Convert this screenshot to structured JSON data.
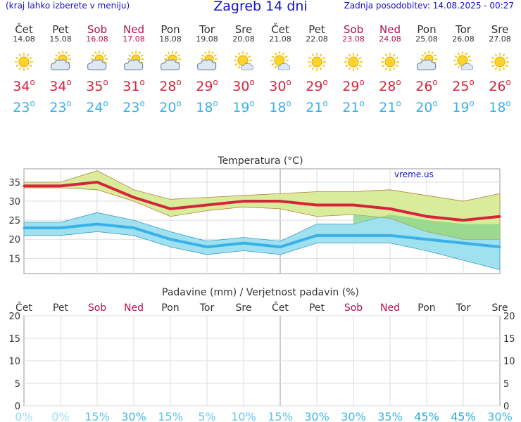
{
  "header": {
    "hint": "(kraj lahko izberete v meniju)",
    "title": "Zagreb 14 dni",
    "updated": "Zadnja posodobitev: 14.08.2025 - 00:27"
  },
  "days": [
    {
      "name": "Čet",
      "date": "14.08",
      "weekend": false,
      "icon": "sun-icon",
      "tmax": "34",
      "tmin": "23"
    },
    {
      "name": "Pet",
      "date": "15.08",
      "weekend": false,
      "icon": "sun-cloud-icon",
      "tmax": "34",
      "tmin": "23"
    },
    {
      "name": "Sob",
      "date": "16.08",
      "weekend": true,
      "icon": "sun-cloud-icon",
      "tmax": "35",
      "tmin": "24"
    },
    {
      "name": "Ned",
      "date": "17.08",
      "weekend": true,
      "icon": "sun-cloud-icon",
      "tmax": "31",
      "tmin": "23"
    },
    {
      "name": "Pon",
      "date": "18.08",
      "weekend": false,
      "icon": "sun-cloud-icon",
      "tmax": "28",
      "tmin": "20"
    },
    {
      "name": "Tor",
      "date": "19.08",
      "weekend": false,
      "icon": "sun-cloud-icon",
      "tmax": "29",
      "tmin": "18"
    },
    {
      "name": "Sre",
      "date": "20.08",
      "weekend": false,
      "icon": "sun-small-cloud-icon",
      "tmax": "30",
      "tmin": "19"
    },
    {
      "name": "Čet",
      "date": "21.08",
      "weekend": false,
      "icon": "sun-small-cloud-icon",
      "tmax": "30",
      "tmin": "18"
    },
    {
      "name": "Pet",
      "date": "22.08",
      "weekend": false,
      "icon": "sun-icon",
      "tmax": "29",
      "tmin": "21"
    },
    {
      "name": "Sob",
      "date": "23.08",
      "weekend": true,
      "icon": "sun-icon",
      "tmax": "29",
      "tmin": "21"
    },
    {
      "name": "Ned",
      "date": "24.08",
      "weekend": true,
      "icon": "sun-icon",
      "tmax": "28",
      "tmin": "21"
    },
    {
      "name": "Pon",
      "date": "25.08",
      "weekend": false,
      "icon": "sun-cloud-icon",
      "tmax": "26",
      "tmin": "20"
    },
    {
      "name": "Tor",
      "date": "26.08",
      "weekend": false,
      "icon": "sun-small-cloud-icon",
      "tmax": "25",
      "tmin": "19"
    },
    {
      "name": "Sre",
      "date": "27.08",
      "weekend": false,
      "icon": "sun-icon",
      "tmax": "26",
      "tmin": "18"
    }
  ],
  "colors": {
    "header_text": "#1111cc",
    "weekend": "#b0124f",
    "tmax": "#d6243b",
    "tmin": "#3ab0ea",
    "max_band": "#d7eb96",
    "min_band": "#9fe1ef",
    "overlap_band": "#8fd68c",
    "precip_pct": "#22aadd"
  },
  "chart_data": [
    {
      "type": "line",
      "title": "Temperatura (°C)",
      "watermark": "vreme.us",
      "categories": [
        "Čet",
        "Pet",
        "Sob",
        "Ned",
        "Pon",
        "Tor",
        "Sre",
        "Čet",
        "Pet",
        "Sob",
        "Ned",
        "Pon",
        "Tor",
        "Sre"
      ],
      "ylim": [
        11,
        38.5
      ],
      "yticks": [
        "15",
        "20",
        "25",
        "30",
        "35"
      ],
      "grid": true,
      "series": [
        {
          "name": "",
          "role": "max",
          "values": [
            34,
            34,
            35,
            31,
            28,
            29,
            30,
            30,
            29,
            29,
            28,
            26,
            25,
            26
          ]
        },
        {
          "name": "",
          "role": "min",
          "values": [
            23,
            23,
            24,
            23,
            20,
            18,
            19,
            18,
            21,
            21,
            21,
            20,
            19,
            18
          ]
        }
      ],
      "bands": [
        {
          "role": "max",
          "upper": [
            35,
            35,
            38,
            33,
            30.5,
            31,
            31.5,
            32,
            32.5,
            32.5,
            33,
            31.5,
            30,
            32
          ],
          "lower": [
            33.5,
            33.5,
            33,
            30,
            26,
            27.5,
            28.5,
            28,
            26,
            26.5,
            25.5,
            22,
            20,
            20
          ]
        },
        {
          "role": "min",
          "upper": [
            24.5,
            24.5,
            27,
            25,
            22,
            19.5,
            20.5,
            19.5,
            24,
            24,
            26.5,
            25,
            24,
            24
          ]
        }
      ]
    },
    {
      "type": "bar",
      "title": "Padavine (mm) / Verjetnost padavin (%)",
      "categories": [
        "Čet",
        "Pet",
        "Sob",
        "Ned",
        "Pon",
        "Tor",
        "Sre",
        "Čet",
        "Pet",
        "Sob",
        "Ned",
        "Pon",
        "Tor",
        "Sre"
      ],
      "ylim": [
        0,
        20
      ],
      "yticks": [
        "0",
        "5",
        "10",
        "15",
        "20"
      ],
      "values": [
        0,
        0,
        0,
        0,
        0,
        0,
        0,
        0,
        0,
        0,
        0,
        0,
        0,
        0
      ],
      "probability_labels": [
        "0%",
        "0%",
        "15%",
        "30%",
        "15%",
        "5%",
        "10%",
        "15%",
        "30%",
        "30%",
        "35%",
        "45%",
        "45%",
        "30%"
      ],
      "probability_values": [
        0,
        0,
        15,
        30,
        15,
        5,
        10,
        15,
        30,
        30,
        35,
        45,
        45,
        30
      ]
    }
  ]
}
